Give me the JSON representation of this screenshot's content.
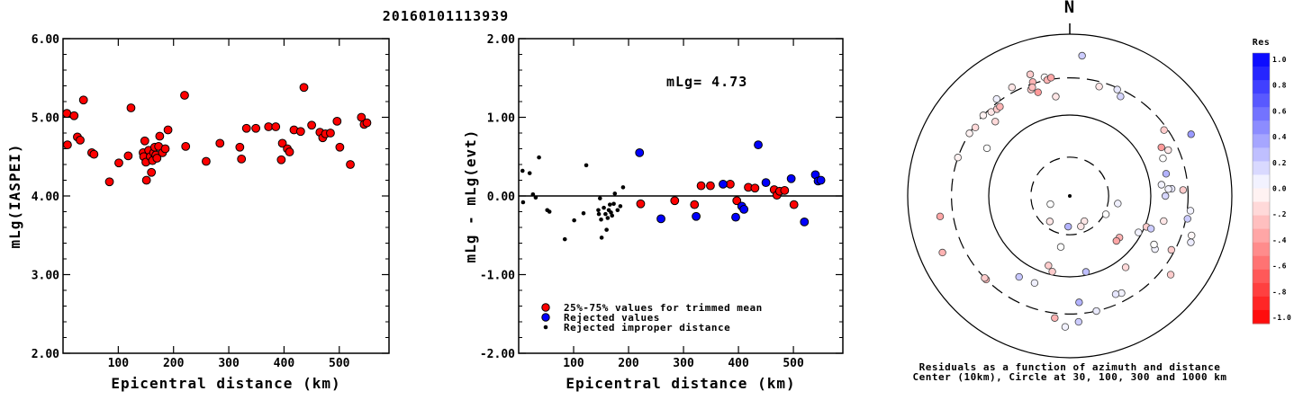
{
  "title": "20160101113939",
  "chart_data": [
    {
      "type": "scatter",
      "ylabel": "mLg(IASPEI)",
      "xlabel": "Epicentral distance (km)",
      "xlim": [
        0,
        590
      ],
      "ylim": [
        2.0,
        6.0
      ],
      "xticks": [
        "100",
        "200",
        "300",
        "400",
        "500"
      ],
      "yticks": [
        "2.00",
        "3.00",
        "4.00",
        "5.00",
        "6.00"
      ],
      "series": [
        {
          "color": "#ff0000",
          "points": [
            [
              7,
              5.05
            ],
            [
              8,
              4.65
            ],
            [
              20,
              5.02
            ],
            [
              26,
              4.75
            ],
            [
              31,
              4.71
            ],
            [
              37,
              5.22
            ],
            [
              52,
              4.55
            ],
            [
              56,
              4.53
            ],
            [
              84,
              4.18
            ],
            [
              101,
              4.42
            ],
            [
              118,
              4.51
            ],
            [
              123,
              5.12
            ],
            [
              145,
              4.55
            ],
            [
              146,
              4.5
            ],
            [
              148,
              4.7
            ],
            [
              150,
              4.43
            ],
            [
              151,
              4.2
            ],
            [
              155,
              4.58
            ],
            [
              158,
              4.5
            ],
            [
              160,
              4.3
            ],
            [
              162,
              4.45
            ],
            [
              164,
              4.55
            ],
            [
              166,
              4.62
            ],
            [
              168,
              4.52
            ],
            [
              170,
              4.48
            ],
            [
              173,
              4.63
            ],
            [
              175,
              4.76
            ],
            [
              180,
              4.55
            ],
            [
              185,
              4.6
            ],
            [
              190,
              4.84
            ],
            [
              220,
              5.28
            ],
            [
              222,
              4.63
            ],
            [
              259,
              4.44
            ],
            [
              284,
              4.67
            ],
            [
              320,
              4.62
            ],
            [
              323,
              4.47
            ],
            [
              332,
              4.86
            ],
            [
              349,
              4.86
            ],
            [
              372,
              4.88
            ],
            [
              385,
              4.88
            ],
            [
              395,
              4.46
            ],
            [
              397,
              4.67
            ],
            [
              406,
              4.6
            ],
            [
              410,
              4.56
            ],
            [
              418,
              4.84
            ],
            [
              430,
              4.82
            ],
            [
              436,
              5.38
            ],
            [
              450,
              4.9
            ],
            [
              465,
              4.81
            ],
            [
              470,
              4.74
            ],
            [
              475,
              4.79
            ],
            [
              484,
              4.8
            ],
            [
              496,
              4.95
            ],
            [
              501,
              4.62
            ],
            [
              520,
              4.4
            ],
            [
              540,
              5.0
            ],
            [
              545,
              4.91
            ],
            [
              550,
              4.93
            ]
          ]
        }
      ]
    },
    {
      "type": "scatter",
      "ylabel": "mLg - mLg(evt)",
      "xlabel": "Epicentral distance (km)",
      "xlim": [
        0,
        590
      ],
      "ylim": [
        -2.0,
        2.0
      ],
      "xticks": [
        "100",
        "200",
        "300",
        "400",
        "500"
      ],
      "yticks": [
        "-2.00",
        "-1.00",
        "0.00",
        "1.00",
        "2.00"
      ],
      "annotation": "mLg= 4.73",
      "legend": [
        "25%-75% values for trimmed mean",
        "Rejected values",
        "Rejected improper distance"
      ],
      "series": [
        {
          "color": "#ff0000",
          "points": [
            [
              222,
              -0.1
            ],
            [
              284,
              -0.06
            ],
            [
              320,
              -0.11
            ],
            [
              332,
              0.13
            ],
            [
              349,
              0.13
            ],
            [
              385,
              0.15
            ],
            [
              397,
              -0.06
            ],
            [
              418,
              0.11
            ],
            [
              430,
              0.1
            ],
            [
              465,
              0.08
            ],
            [
              470,
              0.01
            ],
            [
              475,
              0.06
            ],
            [
              484,
              0.07
            ],
            [
              501,
              -0.11
            ]
          ]
        },
        {
          "color": "#0000ff",
          "points": [
            [
              220,
              0.55
            ],
            [
              259,
              -0.29
            ],
            [
              323,
              -0.26
            ],
            [
              372,
              0.15
            ],
            [
              395,
              -0.27
            ],
            [
              406,
              -0.13
            ],
            [
              410,
              -0.17
            ],
            [
              436,
              0.65
            ],
            [
              450,
              0.17
            ],
            [
              496,
              0.22
            ],
            [
              520,
              -0.33
            ],
            [
              540,
              0.27
            ],
            [
              545,
              0.19
            ],
            [
              550,
              0.2
            ]
          ]
        },
        {
          "color": "#000000",
          "points": [
            [
              7,
              0.32
            ],
            [
              8,
              -0.08
            ],
            [
              20,
              0.29
            ],
            [
              26,
              0.02
            ],
            [
              31,
              -0.02
            ],
            [
              37,
              0.49
            ],
            [
              52,
              -0.18
            ],
            [
              56,
              -0.2
            ],
            [
              84,
              -0.55
            ],
            [
              101,
              -0.31
            ],
            [
              118,
              -0.22
            ],
            [
              123,
              0.39
            ],
            [
              145,
              -0.18
            ],
            [
              146,
              -0.23
            ],
            [
              148,
              -0.03
            ],
            [
              150,
              -0.3
            ],
            [
              151,
              -0.53
            ],
            [
              155,
              -0.15
            ],
            [
              158,
              -0.23
            ],
            [
              160,
              -0.43
            ],
            [
              162,
              -0.28
            ],
            [
              164,
              -0.18
            ],
            [
              166,
              -0.11
            ],
            [
              168,
              -0.21
            ],
            [
              170,
              -0.25
            ],
            [
              173,
              -0.1
            ],
            [
              175,
              0.03
            ],
            [
              180,
              -0.18
            ],
            [
              185,
              -0.13
            ],
            [
              190,
              0.11
            ]
          ]
        }
      ]
    },
    {
      "type": "polar-scatter",
      "north_label": "N",
      "caption": [
        "Residuals as a function of azimuth and distance",
        "Center (10km), Circle at 30, 100, 300 and 1000 km"
      ],
      "colorbar_title": "Res",
      "colorbar_ticks": [
        "1.0",
        "0.8",
        "0.6",
        "0.4",
        "0.2",
        "0.0",
        "-.2",
        "-.4",
        "-.6",
        "-.8",
        "-1.0"
      ],
      "circles_km": [
        10,
        30,
        100,
        300,
        1000
      ],
      "points": [
        [
          24,
          0.72,
          0.09
        ],
        [
          27,
          0.69,
          0.16
        ],
        [
          68,
          0.62,
          0.0
        ],
        [
          90,
          0.59,
          0.16
        ],
        [
          112,
          0.51,
          -0.2
        ],
        [
          118,
          0.48,
          0.05
        ],
        [
          112,
          0.54,
          0.2
        ],
        [
          122,
          0.62,
          0.05
        ],
        [
          142,
          0.56,
          -0.15
        ],
        [
          152,
          0.68,
          0.05
        ],
        [
          155,
          0.67,
          0.1
        ],
        [
          167,
          0.73,
          0.08
        ],
        [
          176,
          0.78,
          0.2
        ],
        [
          182,
          0.81,
          0.05
        ],
        [
          187,
          0.76,
          -0.3
        ],
        [
          193,
          0.48,
          -0.2
        ],
        [
          197,
          0.45,
          -0.2
        ],
        [
          202,
          0.58,
          0.06
        ],
        [
          212,
          0.59,
          0.22
        ],
        [
          225,
          0.73,
          -0.28
        ],
        [
          226,
          0.73,
          -0.2
        ],
        [
          246,
          0.86,
          -0.3
        ],
        [
          261,
          0.81,
          -0.35
        ],
        [
          289,
          0.73,
          -0.05
        ],
        [
          300,
          0.59,
          0.0
        ],
        [
          302,
          0.73,
          -0.05
        ],
        [
          306,
          0.72,
          -0.15
        ],
        [
          313,
          0.73,
          -0.05
        ],
        [
          317,
          0.71,
          -0.1
        ],
        [
          320,
          0.7,
          -0.2
        ],
        [
          322,
          0.7,
          -0.3
        ],
        [
          323,
          0.75,
          0.06
        ],
        [
          332,
          0.76,
          -0.1
        ],
        [
          340,
          0.7,
          -0.2
        ],
        [
          342,
          0.74,
          -0.3
        ],
        [
          343,
          0.67,
          -0.4
        ],
        [
          348,
          0.75,
          0.0
        ],
        [
          352,
          0.62,
          -0.1
        ],
        [
          77,
          0.61,
          0.3
        ],
        [
          83,
          0.57,
          0.05
        ],
        [
          86,
          0.63,
          0.1
        ],
        [
          87,
          0.7,
          -0.2
        ],
        [
          15,
          0.7,
          -0.1
        ],
        [
          62,
          0.64,
          -0.4
        ],
        [
          65,
          0.67,
          -0.1
        ],
        [
          97,
          0.75,
          0.05
        ],
        [
          101,
          0.74,
          0.2
        ],
        [
          108,
          0.79,
          -0.03
        ],
        [
          111,
          0.8,
          0.07
        ],
        [
          130,
          0.4,
          -0.3
        ],
        [
          134,
          0.4,
          -0.35
        ],
        [
          150,
          0.18,
          -0.1
        ],
        [
          160,
          0.2,
          -0.1
        ],
        [
          117,
          0.25,
          0.0
        ],
        [
          86,
          0.61,
          0.05
        ],
        [
          120,
          0.6,
          0.0
        ],
        [
          168,
          0.48,
          0.25
        ],
        [
          183,
          0.19,
          0.3
        ],
        [
          190,
          0.32,
          0.0
        ],
        [
          218,
          0.2,
          -0.1
        ],
        [
          247,
          0.13,
          0.0
        ],
        [
          99,
          0.3,
          0.06
        ],
        [
          63,
          0.84,
          0.4
        ],
        [
          105,
          0.6,
          -0.1
        ],
        [
          118,
          0.71,
          -0.2
        ],
        [
          128,
          0.79,
          -0.2
        ],
        [
          55,
          0.71,
          -0.2
        ],
        [
          175,
          0.66,
          0.3
        ],
        [
          315,
          0.65,
          -0.15
        ],
        [
          342,
          0.79,
          -0.2
        ],
        [
          349,
          0.73,
          -0.3
        ],
        [
          351,
          0.74,
          -0.35
        ],
        [
          341,
          0.71,
          -0.25
        ],
        [
          5,
          0.87,
          0.2
        ]
      ]
    }
  ]
}
